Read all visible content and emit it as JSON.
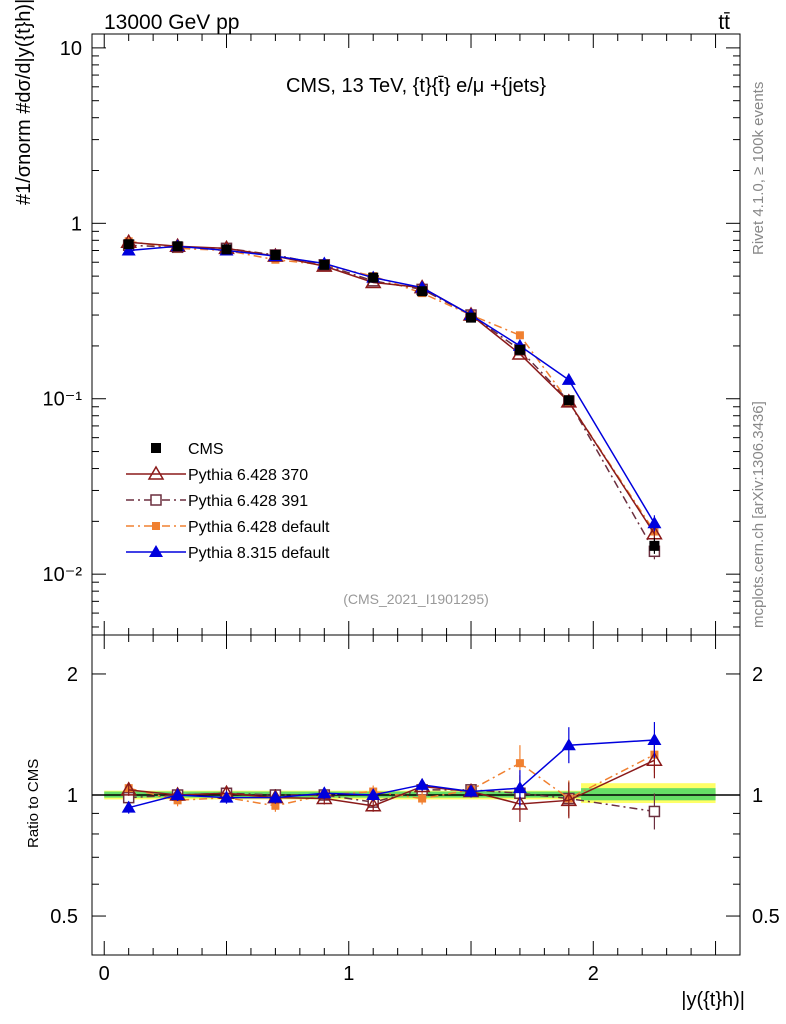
{
  "header": {
    "left": "13000 GeV pp",
    "right": "tt̄"
  },
  "side_labels": {
    "rivet": "Rivet 4.1.0, ≥ 100k events",
    "mcplots": "mcplots.cern.ch [arXiv:1306.3436]"
  },
  "colors": {
    "cms": "#000000",
    "p6_370": "#8b1a1a",
    "p6_391": "#6b2f3f",
    "p6_default": "#f08030",
    "p8_default": "#0000dd",
    "band_inner": "#66dd66",
    "band_outer": "#ffff66"
  },
  "chart_data": [
    {
      "type": "line",
      "title": "CMS, 13 TeV, {t}{t̄} e/μ +{jets}",
      "watermark": "(CMS_2021_I1901295)",
      "ylabel": "#1/σnorm #dσ/d|y({t}h)|}",
      "yscale": "log",
      "ylim": [
        0.0045,
        12
      ],
      "xlim": [
        -0.05,
        2.6
      ],
      "y_ticks": [
        {
          "value": 0.01,
          "label": "10⁻²"
        },
        {
          "value": 0.1,
          "label": "10⁻¹"
        },
        {
          "value": 1,
          "label": "1"
        },
        {
          "value": 10,
          "label": "10"
        }
      ],
      "legend_position": "left-center",
      "x": [
        0.1,
        0.3,
        0.5,
        0.7,
        0.9,
        1.1,
        1.3,
        1.5,
        1.7,
        1.9,
        2.25
      ],
      "series": [
        {
          "name": "CMS",
          "key": "cms",
          "marker": "filled-square",
          "line": "none",
          "values": [
            0.76,
            0.74,
            0.71,
            0.66,
            0.58,
            0.49,
            0.41,
            0.29,
            0.19,
            0.098,
            0.0145
          ]
        },
        {
          "name": "Pythia 6.428 370",
          "key": "p6_370",
          "marker": "open-triangle",
          "line": "solid",
          "values": [
            0.78,
            0.74,
            0.72,
            0.65,
            0.57,
            0.46,
            0.43,
            0.3,
            0.18,
            0.096,
            0.017
          ]
        },
        {
          "name": "Pythia 6.428 391",
          "key": "p6_391",
          "marker": "open-square",
          "line": "dashdot",
          "values": [
            0.75,
            0.73,
            0.72,
            0.66,
            0.58,
            0.47,
            0.42,
            0.3,
            0.19,
            0.097,
            0.0135
          ]
        },
        {
          "name": "Pythia 6.428 default",
          "key": "p6_default",
          "marker": "filled-square-small",
          "line": "dashdot",
          "values": [
            0.79,
            0.72,
            0.7,
            0.62,
            0.58,
            0.5,
            0.4,
            0.3,
            0.23,
            0.096,
            0.0175
          ]
        },
        {
          "name": "Pythia 8.315 default",
          "key": "p8_default",
          "marker": "filled-triangle",
          "line": "solid",
          "values": [
            0.7,
            0.74,
            0.7,
            0.65,
            0.59,
            0.49,
            0.43,
            0.3,
            0.2,
            0.128,
            0.0195
          ]
        }
      ]
    },
    {
      "type": "line",
      "title": "",
      "ylabel": "Ratio to CMS",
      "xlabel": "|y({t}h)|",
      "yscale": "log",
      "ylim": [
        0.4,
        2.5
      ],
      "xlim": [
        -0.05,
        2.6
      ],
      "y_ticks": [
        {
          "value": 0.5,
          "label": "0.5"
        },
        {
          "value": 1,
          "label": "1"
        },
        {
          "value": 2,
          "label": "2"
        }
      ],
      "x_ticks": [
        {
          "value": 0,
          "label": "0"
        },
        {
          "value": 1,
          "label": "1"
        },
        {
          "value": 2,
          "label": "2"
        }
      ],
      "x": [
        0.1,
        0.3,
        0.5,
        0.7,
        0.9,
        1.1,
        1.3,
        1.5,
        1.7,
        1.9,
        2.25
      ],
      "band_inner": [
        [
          0,
          2.5,
          0.985,
          1.02
        ],
        [
          1.95,
          2.5,
          0.97,
          1.04
        ]
      ],
      "band_outer": [
        [
          0,
          2.5,
          0.975,
          1.025
        ],
        [
          1.95,
          2.5,
          0.955,
          1.07
        ]
      ],
      "series": [
        {
          "name": "Pythia 6.428 370",
          "key": "p6_370",
          "values": [
            1.03,
            1.0,
            1.01,
            0.985,
            0.98,
            0.94,
            1.05,
            1.02,
            0.95,
            0.97,
            1.22
          ]
        },
        {
          "name": "Pythia 6.428 391",
          "key": "p6_391",
          "values": [
            0.985,
            1.0,
            1.01,
            1.0,
            1.0,
            0.96,
            1.03,
            1.03,
            1.01,
            0.98,
            0.91
          ]
        },
        {
          "name": "Pythia 6.428 default",
          "key": "p6_default",
          "values": [
            1.04,
            0.97,
            0.985,
            0.94,
            1.0,
            1.02,
            0.98,
            1.03,
            1.2,
            0.98,
            1.26
          ]
        },
        {
          "name": "Pythia 8.315 default",
          "key": "p8_default",
          "values": [
            0.93,
            1.0,
            0.985,
            0.985,
            1.01,
            1.0,
            1.06,
            1.02,
            1.04,
            1.33,
            1.37
          ]
        }
      ]
    }
  ]
}
